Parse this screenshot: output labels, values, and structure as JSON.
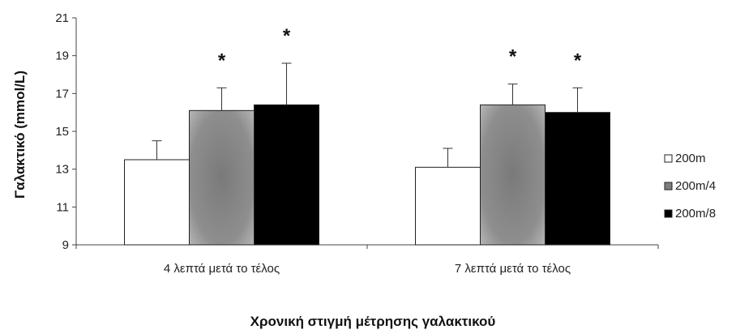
{
  "chart_data": {
    "type": "bar",
    "categories": [
      "4 λεπτά μετά το τέλος",
      "7 λεπτά μετά το τέλος"
    ],
    "series": [
      {
        "name": "200m",
        "values": [
          13.5,
          13.1
        ],
        "errors": [
          1.0,
          1.0
        ],
        "significant": [
          false,
          false
        ],
        "color": "#ffffff"
      },
      {
        "name": "200m/4",
        "values": [
          16.1,
          16.4
        ],
        "errors": [
          1.2,
          1.1
        ],
        "significant": [
          true,
          true
        ],
        "color": "#8c8c8c"
      },
      {
        "name": "200m/8",
        "values": [
          16.4,
          16.0
        ],
        "errors": [
          2.2,
          1.3
        ],
        "significant": [
          true,
          true
        ],
        "color": "#000000"
      }
    ],
    "significance_marker": "*",
    "xlabel": "Χρονική στιγμή μέτρησης γαλακτικού",
    "ylabel": "Γαλακτικό (mmol/L)",
    "ylim": [
      9,
      21
    ],
    "yticks": [
      "9",
      "11",
      "13",
      "15",
      "17",
      "19",
      "21"
    ],
    "grid": false,
    "legend_position": "right"
  }
}
